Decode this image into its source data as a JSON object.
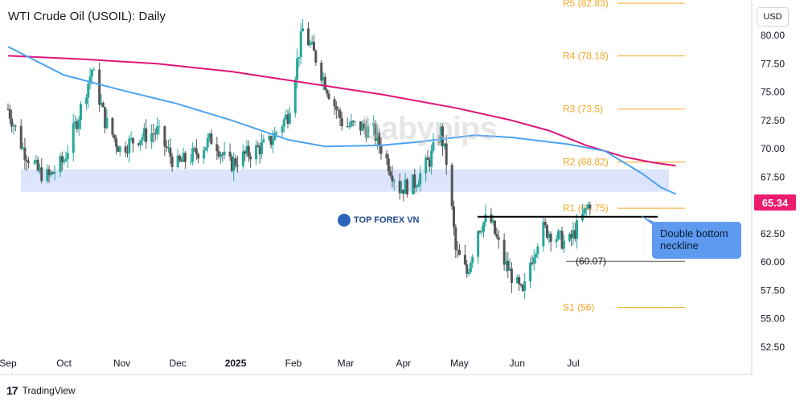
{
  "chart_title": "WTI Crude Oil (USOIL): Daily",
  "currency": "USD",
  "current_price": "65.34",
  "watermark": "babypips",
  "brand_name": "TOP FOREX VN",
  "callout_text": "Double bottom neckline",
  "footer_brand": "TradingView",
  "colors": {
    "up_candle": "#26a69a",
    "down_candle": "#555555",
    "ma_blue": "#4aa3f0",
    "ma_magenta": "#e0157a",
    "pivot_orange": "#f5a623",
    "zone_fill": "#d6e0fb",
    "price_tag": "#ec1c6f",
    "callout_fill": "#5e9bf0"
  },
  "chart_data": {
    "type": "candlestick",
    "timeframe": "Daily",
    "y_range": [
      52.5,
      82.5
    ],
    "y_ticks": [
      "80.00",
      "77.50",
      "75.00",
      "72.50",
      "70.00",
      "67.50",
      "65.00",
      "62.50",
      "60.00",
      "57.50",
      "55.00",
      "52.50"
    ],
    "x_ticks": [
      "Sep",
      "Oct",
      "Nov",
      "Dec",
      "2025",
      "Feb",
      "Mar",
      "Apr",
      "May",
      "Jun",
      "Jul"
    ],
    "pivot_levels": [
      {
        "label": "R5 (82.83)",
        "value": 82.83
      },
      {
        "label": "R4 (78.18)",
        "value": 78.18
      },
      {
        "label": "R3 (73.5)",
        "value": 73.5
      },
      {
        "label": "R2 (68.82)",
        "value": 68.82
      },
      {
        "label": "R1 (64.75)",
        "value": 64.75
      },
      {
        "label": "(60.07)",
        "value": 60.07
      },
      {
        "label": "S1 (56)",
        "value": 56.0
      }
    ],
    "resistance_zone": [
      66.2,
      68.2
    ],
    "neckline": 64.0,
    "ma_blue_points": [
      [
        0,
        79.0
      ],
      [
        30,
        76.5
      ],
      [
        60,
        75.2
      ],
      [
        90,
        74.0
      ],
      [
        120,
        72.5
      ],
      [
        150,
        70.8
      ],
      [
        170,
        70.2
      ],
      [
        200,
        70.3
      ],
      [
        220,
        70.6
      ],
      [
        250,
        71.2
      ],
      [
        270,
        71.0
      ],
      [
        290,
        70.6
      ],
      [
        300,
        70.4
      ],
      [
        320,
        69.8
      ],
      [
        340,
        67.8
      ],
      [
        350,
        66.6
      ],
      [
        358,
        66.0
      ]
    ],
    "ma_magenta_points": [
      [
        0,
        78.2
      ],
      [
        40,
        77.9
      ],
      [
        80,
        77.5
      ],
      [
        120,
        76.8
      ],
      [
        160,
        75.8
      ],
      [
        200,
        74.8
      ],
      [
        240,
        73.6
      ],
      [
        270,
        72.5
      ],
      [
        290,
        71.6
      ],
      [
        310,
        70.3
      ],
      [
        330,
        69.3
      ],
      [
        345,
        68.8
      ],
      [
        358,
        68.5
      ]
    ],
    "candles_note": "approximate daily OHLC read from the chart"
  }
}
